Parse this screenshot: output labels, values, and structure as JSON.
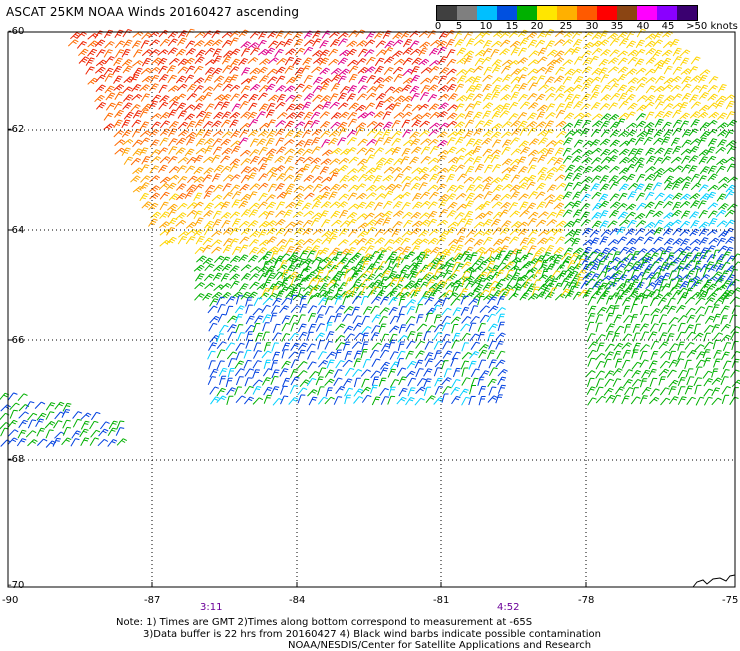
{
  "title": "ASCAT 25KM NOAA Winds 20160427 ascending",
  "colorbar": {
    "colors": [
      "#404040",
      "#7f7f7f",
      "#00bfff",
      "#0050e0",
      "#00b000",
      "#ffe600",
      "#ffb000",
      "#ff5a00",
      "#ff0000",
      "#8b4513",
      "#ff00ff",
      "#8a00ff",
      "#3a0070"
    ],
    "labels": [
      "0",
      "5",
      "10",
      "15",
      "20",
      "25",
      "30",
      "35",
      "40",
      "45",
      ">50 knots"
    ]
  },
  "latitude_labels": [
    "-60",
    "-62",
    "-64",
    "-66",
    "-68",
    "-70"
  ],
  "longitude_labels": [
    "-90",
    "-87",
    "-84",
    "-81",
    "-78",
    "-75"
  ],
  "time_labels": [
    "3:11",
    "4:52"
  ],
  "notes": [
    "Note: 1) Times are GMT 2)Times along bottom correspond to measurement at -65S",
    "3)Data buffer is 22 hrs from 20160427 4) Black wind barbs indicate possible contamination",
    "NOAA/NESDIS/Center for Satellite Applications and Research"
  ]
}
